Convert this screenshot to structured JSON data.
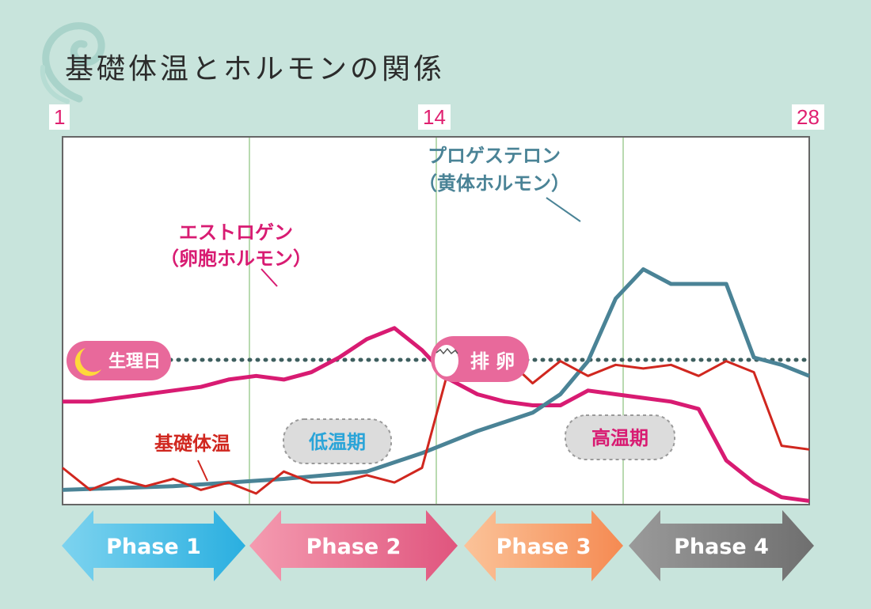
{
  "title": "基礎体温とホルモンの関係",
  "chart_data": {
    "type": "line",
    "x_range": [
      1,
      28
    ],
    "day_labels": [
      "1",
      "14",
      "28"
    ],
    "series": [
      {
        "name": "エストロゲン\n（卵胞ホルモン）",
        "color": "#d81b72",
        "points": [
          [
            1,
            72
          ],
          [
            2,
            72
          ],
          [
            3,
            71
          ],
          [
            4,
            70
          ],
          [
            5,
            69
          ],
          [
            6,
            68
          ],
          [
            7,
            66
          ],
          [
            8,
            65
          ],
          [
            9,
            66
          ],
          [
            10,
            64
          ],
          [
            11,
            60
          ],
          [
            12,
            55
          ],
          [
            13,
            52
          ],
          [
            14,
            58
          ],
          [
            15,
            66
          ],
          [
            16,
            70
          ],
          [
            17,
            72
          ],
          [
            18,
            73
          ],
          [
            19,
            73
          ],
          [
            20,
            69
          ],
          [
            21,
            70
          ],
          [
            22,
            71
          ],
          [
            23,
            72
          ],
          [
            24,
            74
          ],
          [
            25,
            88
          ],
          [
            26,
            94
          ],
          [
            27,
            98
          ],
          [
            28,
            99
          ]
        ],
        "label_lines": [
          "エストロゲン",
          "（卵胞ホルモン）"
        ]
      },
      {
        "name": "プロゲステロン\n（黄体ホルモン）",
        "color": "#4a8396",
        "points": [
          [
            1,
            96
          ],
          [
            5,
            95
          ],
          [
            9,
            93
          ],
          [
            12,
            91
          ],
          [
            14,
            86
          ],
          [
            16,
            80
          ],
          [
            18,
            75
          ],
          [
            19,
            70
          ],
          [
            20,
            61
          ],
          [
            21,
            44
          ],
          [
            22,
            36
          ],
          [
            23,
            40
          ],
          [
            24,
            40
          ],
          [
            25,
            40
          ],
          [
            26,
            60
          ],
          [
            27,
            62
          ],
          [
            28,
            65
          ]
        ],
        "label_lines": [
          "プロゲステロン",
          "（黄体ホルモン）"
        ]
      },
      {
        "name": "基礎体温",
        "color": "#d0271f",
        "points": [
          [
            1,
            90
          ],
          [
            2,
            96
          ],
          [
            3,
            93
          ],
          [
            4,
            95
          ],
          [
            5,
            93
          ],
          [
            6,
            96
          ],
          [
            7,
            94
          ],
          [
            8,
            97
          ],
          [
            9,
            91
          ],
          [
            10,
            94
          ],
          [
            11,
            94
          ],
          [
            12,
            92
          ],
          [
            13,
            94
          ],
          [
            14,
            90
          ],
          [
            15,
            62
          ],
          [
            16,
            64
          ],
          [
            17,
            60
          ],
          [
            18,
            67
          ],
          [
            19,
            61
          ],
          [
            20,
            65
          ],
          [
            21,
            62
          ],
          [
            22,
            63
          ],
          [
            23,
            62
          ],
          [
            24,
            65
          ],
          [
            25,
            61
          ],
          [
            26,
            64
          ],
          [
            27,
            84
          ],
          [
            28,
            85
          ]
        ],
        "label_lines": [
          "基礎体温"
        ]
      }
    ]
  },
  "markers": {
    "period": "生理日",
    "ovulation": "排 卵"
  },
  "zones": {
    "low": "低温期",
    "high": "高温期"
  },
  "phases": [
    {
      "label": "Phase 1",
      "color_left": "#7dd3ef",
      "color_right": "#2aafe0"
    },
    {
      "label": "Phase 2",
      "color_left": "#f49bb0",
      "color_right": "#e0557e"
    },
    {
      "label": "Phase 3",
      "color_left": "#fbc399",
      "color_right": "#f58a52"
    },
    {
      "label": "Phase 4",
      "color_left": "#9a9a9a",
      "color_right": "#6f6f6f"
    }
  ]
}
